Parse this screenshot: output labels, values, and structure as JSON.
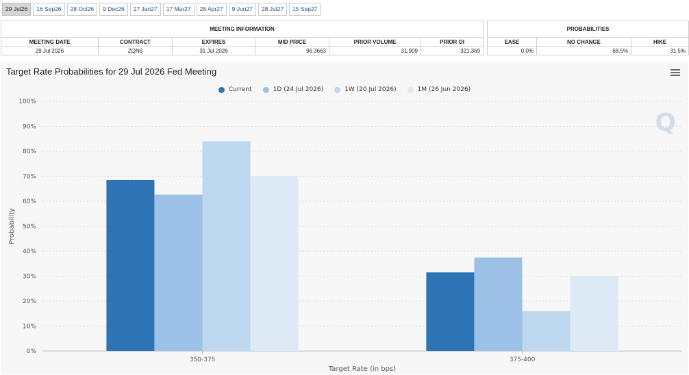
{
  "tabs": [
    "29 Jul26",
    "16 Sep26",
    "28 Oct26",
    "9 Dec26",
    "27 Jan27",
    "17 Mar27",
    "28 Apr27",
    "9 Jun27",
    "28 Jul27",
    "15 Sep27"
  ],
  "active_tab": 0,
  "meeting_info": {
    "title": "MEETING INFORMATION",
    "headers": [
      "MEETING DATE",
      "CONTRACT",
      "EXPIRES",
      "MID PRICE",
      "PRIOR VOLUME",
      "PRIOR OI"
    ],
    "row": {
      "meeting_date": "29 Jul 2026",
      "contract": "ZQN6",
      "expires": "31 Jul 2026",
      "mid_price": "96.3663",
      "prior_volume": "31,909",
      "prior_oi": "321,369"
    }
  },
  "probabilities": {
    "title": "PROBABILITIES",
    "headers": [
      "EASE",
      "NO CHANGE",
      "HIKE"
    ],
    "row": {
      "ease": "0.0%",
      "no_change": "68.5%",
      "hike": "31.5%"
    }
  },
  "chart": {
    "menu_icon": "hamburger-menu-icon",
    "watermark": "Q"
  },
  "chart_data": {
    "type": "bar",
    "title": "Target Rate Probabilities for 29 Jul 2026 Fed Meeting",
    "xlabel": "Target Rate (in bps)",
    "ylabel": "Probability",
    "categories": [
      "350-375",
      "375-400"
    ],
    "ylim": [
      0,
      100
    ],
    "yticks": [
      "0%",
      "10%",
      "20%",
      "30%",
      "40%",
      "50%",
      "60%",
      "70%",
      "80%",
      "90%",
      "100%"
    ],
    "grid": true,
    "legend_position": "top-center",
    "series": [
      {
        "name": "Current",
        "color": "#2e74b5",
        "values": [
          68.5,
          31.5
        ]
      },
      {
        "name": "1D (24 Jul 2026)",
        "color": "#9cc0e6",
        "values": [
          62.6,
          37.4
        ]
      },
      {
        "name": "1W (20 Jul 2026)",
        "color": "#bdd7ee",
        "values": [
          84.0,
          16.0
        ]
      },
      {
        "name": "1M (26 Jun 2026)",
        "color": "#ddeaf6",
        "values": [
          70.0,
          30.0
        ]
      }
    ]
  }
}
